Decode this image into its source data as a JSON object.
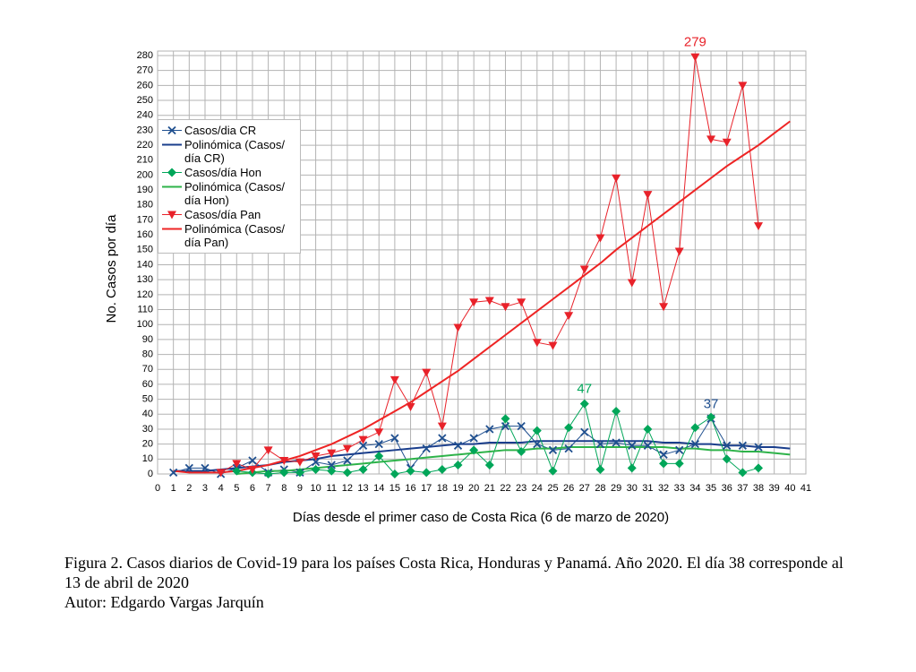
{
  "chart_data": {
    "type": "line",
    "y_label": "No. Casos por día",
    "x_label": "Días desde el primer caso de Costa Rica (6 de marzo de 2020)",
    "x": [
      1,
      2,
      3,
      4,
      5,
      6,
      7,
      8,
      9,
      10,
      11,
      12,
      13,
      14,
      15,
      16,
      17,
      18,
      19,
      20,
      21,
      22,
      23,
      24,
      25,
      26,
      27,
      28,
      29,
      30,
      31,
      32,
      33,
      34,
      35,
      36,
      37,
      38,
      39,
      40
    ],
    "xlim": [
      0,
      41
    ],
    "xticks": [
      0,
      1,
      2,
      3,
      4,
      5,
      6,
      7,
      8,
      9,
      10,
      11,
      12,
      13,
      14,
      15,
      16,
      17,
      18,
      19,
      20,
      21,
      22,
      23,
      24,
      25,
      26,
      27,
      28,
      29,
      30,
      31,
      32,
      33,
      34,
      35,
      36,
      37,
      38,
      39,
      40,
      41
    ],
    "ylim": [
      0,
      280
    ],
    "yticks": [
      0,
      10,
      20,
      30,
      40,
      50,
      60,
      70,
      80,
      90,
      100,
      110,
      120,
      130,
      140,
      150,
      160,
      170,
      180,
      190,
      200,
      210,
      220,
      230,
      240,
      250,
      260,
      270,
      280
    ],
    "grid": true,
    "legend": "upper-left",
    "series": [
      {
        "name": "Casos/dia CR",
        "color": "#1f4f8f",
        "marker": "x",
        "values": [
          1,
          4,
          4,
          0,
          4,
          9,
          1,
          3,
          1,
          8,
          6,
          9,
          19,
          20,
          24,
          4,
          17,
          24,
          19,
          24,
          30,
          32,
          32,
          20,
          16,
          17,
          28,
          20,
          21,
          19,
          19,
          13,
          16,
          20,
          37,
          19,
          19,
          18,
          null,
          null
        ],
        "value_labels": [
          null,
          null,
          null,
          null,
          null,
          null,
          null,
          null,
          null,
          null,
          null,
          null,
          null,
          null,
          null,
          null,
          null,
          null,
          null,
          null,
          null,
          null,
          null,
          null,
          null,
          null,
          null,
          null,
          null,
          null,
          null,
          null,
          null,
          null,
          "37",
          null,
          null,
          null,
          null,
          null
        ]
      },
      {
        "name": "Polinómica (Casos/ día CR)",
        "color": "#1a3e8c",
        "marker": "none",
        "values": [
          2,
          2,
          2,
          3,
          4,
          5,
          6,
          8,
          9,
          10,
          12,
          13,
          14,
          15,
          16,
          17,
          18,
          19,
          20,
          20,
          21,
          21,
          21,
          22,
          22,
          22,
          22,
          22,
          22,
          22,
          22,
          21,
          21,
          20,
          20,
          19,
          19,
          18,
          18,
          17
        ]
      },
      {
        "name": "Casos/día Hon",
        "color": "#00a659",
        "marker": "diamond",
        "values": [
          null,
          null,
          null,
          null,
          2,
          1,
          0,
          1,
          1,
          3,
          2,
          1,
          3,
          12,
          0,
          2,
          1,
          3,
          6,
          16,
          6,
          37,
          15,
          29,
          2,
          31,
          47,
          3,
          42,
          4,
          30,
          7,
          7,
          31,
          38,
          10,
          1,
          4,
          null,
          null
        ],
        "value_labels": [
          null,
          null,
          null,
          null,
          null,
          null,
          null,
          null,
          null,
          null,
          null,
          null,
          null,
          null,
          null,
          null,
          null,
          null,
          null,
          null,
          null,
          null,
          null,
          null,
          null,
          null,
          "47",
          null,
          null,
          null,
          null,
          null,
          null,
          null,
          null,
          null,
          null,
          null,
          null,
          null
        ]
      },
      {
        "name": "Polinómica (Casos/ día Hon)",
        "color": "#2eb34a",
        "marker": "none",
        "values": [
          null,
          null,
          null,
          null,
          0,
          1,
          2,
          2,
          3,
          4,
          5,
          6,
          7,
          8,
          9,
          10,
          11,
          12,
          13,
          14,
          15,
          16,
          16,
          17,
          17,
          18,
          18,
          18,
          18,
          18,
          18,
          18,
          17,
          17,
          16,
          16,
          15,
          15,
          14,
          13
        ]
      },
      {
        "name": "Casos/día Pan",
        "color": "#e8222a",
        "marker": "triangle",
        "values": [
          null,
          null,
          null,
          1,
          7,
          3,
          16,
          9,
          8,
          12,
          14,
          17,
          23,
          28,
          63,
          45,
          68,
          32,
          98,
          115,
          116,
          112,
          115,
          88,
          86,
          106,
          137,
          158,
          198,
          128,
          187,
          112,
          149,
          279,
          224,
          222,
          260,
          166,
          null,
          null
        ],
        "value_labels": [
          null,
          null,
          null,
          null,
          null,
          null,
          null,
          null,
          null,
          null,
          null,
          null,
          null,
          null,
          null,
          null,
          null,
          null,
          null,
          null,
          null,
          null,
          null,
          null,
          null,
          null,
          null,
          null,
          null,
          null,
          null,
          null,
          null,
          "279",
          null,
          null,
          null,
          null,
          null,
          null
        ]
      },
      {
        "name": "Polinómica (Casos/ día Pan)",
        "color": "#ee2424",
        "marker": "none",
        "values": [
          2,
          1,
          1,
          1,
          2,
          4,
          6,
          9,
          12,
          16,
          20,
          25,
          30,
          36,
          42,
          48,
          55,
          62,
          69,
          77,
          85,
          93,
          101,
          109,
          117,
          125,
          133,
          141,
          150,
          158,
          166,
          174,
          182,
          190,
          198,
          206,
          213,
          220,
          228,
          236
        ]
      }
    ]
  },
  "caption": "Figura 2. Casos diarios de Covid-19 para los países Costa Rica, Honduras y Panamá. Año 2020. El día 38 corresponde al 13 de abril de 2020",
  "author": "Autor: Edgardo Vargas Jarquín"
}
